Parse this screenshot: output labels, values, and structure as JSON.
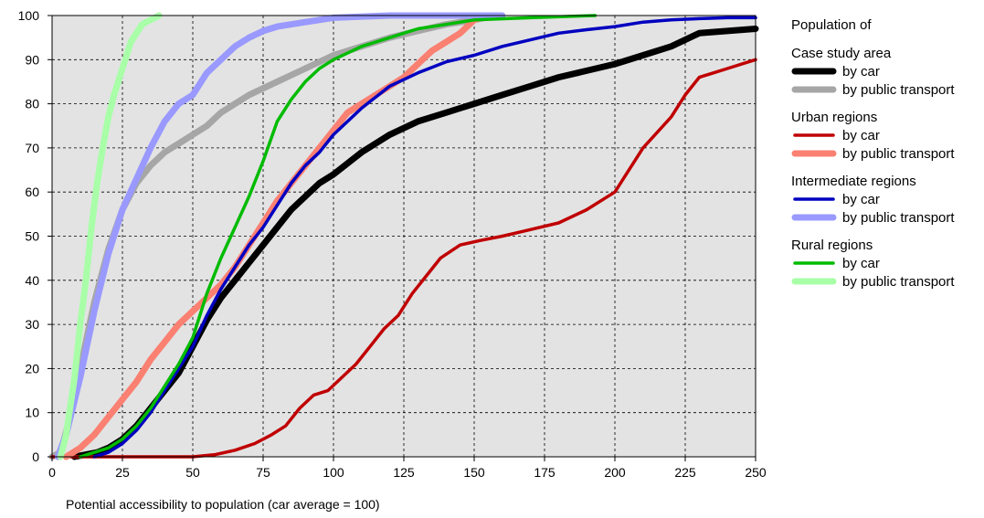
{
  "chart_data": {
    "type": "line",
    "xlabel": "Potential accessibility to population (car average = 100)",
    "ylabel": "",
    "xlim": [
      0,
      250
    ],
    "ylim": [
      0,
      100
    ],
    "xticks": [
      0,
      25,
      50,
      75,
      100,
      125,
      150,
      175,
      200,
      225,
      250
    ],
    "yticks": [
      0,
      10,
      20,
      30,
      40,
      50,
      60,
      70,
      80,
      90,
      100
    ],
    "grid": true,
    "legend_position": "right",
    "legend_title": "Population of",
    "legend": [
      {
        "group": "Case study area",
        "entries": [
          {
            "label": "by car",
            "series": 0
          },
          {
            "label": "by public transport",
            "series": 1
          }
        ]
      },
      {
        "group": "Urban regions",
        "entries": [
          {
            "label": "by car",
            "series": 2
          },
          {
            "label": "by public transport",
            "series": 3
          }
        ]
      },
      {
        "group": "Intermediate regions",
        "entries": [
          {
            "label": "by car",
            "series": 4
          },
          {
            "label": "by public transport",
            "series": 5
          }
        ]
      },
      {
        "group": "Rural regions",
        "entries": [
          {
            "label": "by car",
            "series": 6
          },
          {
            "label": "by public transport",
            "series": 7
          }
        ]
      }
    ],
    "series": [
      {
        "color": "#000000",
        "weight": "heavy",
        "points": [
          [
            8,
            0
          ],
          [
            12,
            0.5
          ],
          [
            16,
            1
          ],
          [
            20,
            2
          ],
          [
            25,
            4
          ],
          [
            30,
            7
          ],
          [
            35,
            11
          ],
          [
            40,
            15
          ],
          [
            45,
            19
          ],
          [
            50,
            25
          ],
          [
            55,
            31
          ],
          [
            60,
            36
          ],
          [
            65,
            40
          ],
          [
            70,
            44
          ],
          [
            75,
            48
          ],
          [
            80,
            52
          ],
          [
            85,
            56
          ],
          [
            90,
            59
          ],
          [
            95,
            62
          ],
          [
            100,
            64
          ],
          [
            110,
            69
          ],
          [
            120,
            73
          ],
          [
            130,
            76
          ],
          [
            140,
            78
          ],
          [
            150,
            80
          ],
          [
            160,
            82
          ],
          [
            170,
            84
          ],
          [
            180,
            86
          ],
          [
            190,
            87.5
          ],
          [
            200,
            89
          ],
          [
            210,
            91
          ],
          [
            220,
            93
          ],
          [
            230,
            96
          ],
          [
            240,
            96.5
          ],
          [
            250,
            97
          ]
        ]
      },
      {
        "color": "#a6a6a6",
        "weight": "heavy",
        "points": [
          [
            0,
            0
          ],
          [
            3,
            1
          ],
          [
            6,
            8
          ],
          [
            10,
            20
          ],
          [
            15,
            35
          ],
          [
            20,
            47
          ],
          [
            25,
            56
          ],
          [
            30,
            62
          ],
          [
            35,
            66
          ],
          [
            40,
            69
          ],
          [
            45,
            71
          ],
          [
            50,
            73
          ],
          [
            55,
            75
          ],
          [
            60,
            78
          ],
          [
            70,
            82
          ],
          [
            80,
            85
          ],
          [
            90,
            88
          ],
          [
            100,
            91
          ],
          [
            110,
            93
          ],
          [
            120,
            95
          ],
          [
            130,
            96.5
          ],
          [
            140,
            98
          ],
          [
            150,
            99
          ],
          [
            158,
            100
          ]
        ]
      },
      {
        "color": "#c00000",
        "weight": "normal",
        "points": [
          [
            0,
            0
          ],
          [
            40,
            0
          ],
          [
            50,
            0
          ],
          [
            58,
            0.5
          ],
          [
            65,
            1.5
          ],
          [
            72,
            3
          ],
          [
            78,
            5
          ],
          [
            83,
            7
          ],
          [
            88,
            11
          ],
          [
            93,
            14
          ],
          [
            98,
            15
          ],
          [
            103,
            18
          ],
          [
            108,
            21
          ],
          [
            113,
            25
          ],
          [
            118,
            29
          ],
          [
            123,
            32
          ],
          [
            128,
            37
          ],
          [
            133,
            41
          ],
          [
            138,
            45
          ],
          [
            145,
            48
          ],
          [
            152,
            49
          ],
          [
            160,
            50
          ],
          [
            170,
            51.5
          ],
          [
            180,
            53
          ],
          [
            190,
            56
          ],
          [
            200,
            60
          ],
          [
            210,
            70
          ],
          [
            220,
            77
          ],
          [
            225,
            82
          ],
          [
            230,
            86
          ],
          [
            235,
            87
          ],
          [
            240,
            88
          ],
          [
            250,
            90
          ]
        ]
      },
      {
        "color": "#fa8072",
        "weight": "heavy",
        "points": [
          [
            5,
            0
          ],
          [
            10,
            2
          ],
          [
            15,
            5
          ],
          [
            20,
            9
          ],
          [
            25,
            13
          ],
          [
            30,
            17
          ],
          [
            35,
            22
          ],
          [
            40,
            26
          ],
          [
            45,
            30
          ],
          [
            50,
            33
          ],
          [
            55,
            36
          ],
          [
            60,
            39
          ],
          [
            65,
            43
          ],
          [
            70,
            48
          ],
          [
            75,
            53
          ],
          [
            80,
            58
          ],
          [
            85,
            62
          ],
          [
            90,
            66
          ],
          [
            95,
            70
          ],
          [
            100,
            74
          ],
          [
            105,
            78
          ],
          [
            110,
            80
          ],
          [
            115,
            82
          ],
          [
            120,
            84
          ],
          [
            125,
            86
          ],
          [
            130,
            89
          ],
          [
            135,
            92
          ],
          [
            140,
            94
          ],
          [
            145,
            96
          ],
          [
            150,
            99
          ],
          [
            155,
            100
          ]
        ]
      },
      {
        "color": "#0000c0",
        "weight": "normal",
        "points": [
          [
            15,
            0
          ],
          [
            20,
            1
          ],
          [
            25,
            3
          ],
          [
            30,
            6
          ],
          [
            35,
            10
          ],
          [
            40,
            15
          ],
          [
            45,
            20
          ],
          [
            50,
            25
          ],
          [
            55,
            32
          ],
          [
            60,
            38
          ],
          [
            65,
            43
          ],
          [
            70,
            48
          ],
          [
            75,
            52
          ],
          [
            80,
            57
          ],
          [
            85,
            62
          ],
          [
            90,
            66
          ],
          [
            95,
            69
          ],
          [
            100,
            73
          ],
          [
            110,
            79
          ],
          [
            120,
            84
          ],
          [
            130,
            87
          ],
          [
            140,
            89.5
          ],
          [
            150,
            91
          ],
          [
            160,
            93
          ],
          [
            170,
            94.5
          ],
          [
            180,
            96
          ],
          [
            190,
            96.8
          ],
          [
            200,
            97.5
          ],
          [
            210,
            98.5
          ],
          [
            220,
            99
          ],
          [
            230,
            99.3
          ],
          [
            240,
            99.5
          ],
          [
            250,
            99.5
          ]
        ]
      },
      {
        "color": "#9999ff",
        "weight": "heavy",
        "points": [
          [
            2,
            0
          ],
          [
            5,
            5
          ],
          [
            10,
            18
          ],
          [
            15,
            33
          ],
          [
            20,
            46
          ],
          [
            25,
            56
          ],
          [
            30,
            63
          ],
          [
            35,
            70
          ],
          [
            40,
            76
          ],
          [
            45,
            80
          ],
          [
            50,
            82
          ],
          [
            55,
            87
          ],
          [
            60,
            90
          ],
          [
            65,
            93
          ],
          [
            70,
            95
          ],
          [
            75,
            96.5
          ],
          [
            80,
            97.5
          ],
          [
            90,
            98.5
          ],
          [
            100,
            99.5
          ],
          [
            120,
            100
          ],
          [
            160,
            100
          ]
        ]
      },
      {
        "color": "#00bb00",
        "weight": "normal",
        "points": [
          [
            10,
            0
          ],
          [
            15,
            1
          ],
          [
            20,
            2
          ],
          [
            25,
            4
          ],
          [
            30,
            7
          ],
          [
            35,
            11
          ],
          [
            40,
            16
          ],
          [
            45,
            21
          ],
          [
            50,
            27
          ],
          [
            55,
            37
          ],
          [
            60,
            45
          ],
          [
            65,
            52
          ],
          [
            70,
            59
          ],
          [
            75,
            67
          ],
          [
            80,
            76
          ],
          [
            85,
            81
          ],
          [
            90,
            85
          ],
          [
            95,
            88
          ],
          [
            100,
            90
          ],
          [
            105,
            91.5
          ],
          [
            110,
            93
          ],
          [
            115,
            94
          ],
          [
            120,
            95
          ],
          [
            125,
            96
          ],
          [
            130,
            97
          ],
          [
            140,
            98
          ],
          [
            150,
            99
          ],
          [
            170,
            99.5
          ],
          [
            193,
            100
          ]
        ]
      },
      {
        "color": "#a8ffa8",
        "weight": "heavy",
        "points": [
          [
            3,
            0
          ],
          [
            5,
            5
          ],
          [
            8,
            18
          ],
          [
            10,
            30
          ],
          [
            12,
            40
          ],
          [
            14,
            52
          ],
          [
            16,
            62
          ],
          [
            18,
            70
          ],
          [
            20,
            77
          ],
          [
            22,
            82
          ],
          [
            24,
            86
          ],
          [
            26,
            90
          ],
          [
            28,
            94
          ],
          [
            30,
            96
          ],
          [
            32,
            98
          ],
          [
            35,
            99
          ],
          [
            38,
            100
          ]
        ]
      }
    ]
  }
}
